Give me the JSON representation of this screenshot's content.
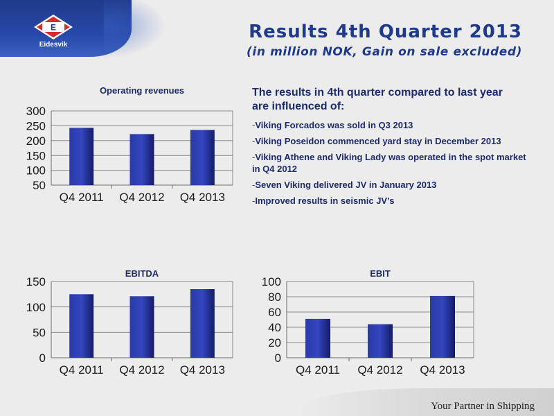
{
  "logo": {
    "name": "Eidesvik",
    "mark": "E",
    "colors": {
      "band": "#1f3a8a",
      "diamond": "#d62c2c"
    }
  },
  "title": "Results 4th Quarter 2013",
  "subtitle": "(in million NOK, Gain on sale excluded)",
  "text": {
    "heading": "The results in 4th quarter compared to last year are influenced of:",
    "bullets": [
      "Viking Forcados was sold in Q3 2013",
      "Viking Poseidon commenced yard stay in December 2013",
      "Viking Athene and Viking Lady was operated in the spot market in Q4 2012",
      "Seven Viking delivered JV in January 2013",
      "Improved results in seismic JV’s"
    ]
  },
  "tagline": "Your Partner in Shipping",
  "colors": {
    "bar": "#1e2a8c",
    "text": "#1c2a6e",
    "grid": "#8a8a8a"
  },
  "chart_data": [
    {
      "type": "bar",
      "title": "Operating revenues",
      "categories": [
        "Q4 2011",
        "Q4 2012",
        "Q4 2013"
      ],
      "values": [
        243,
        222,
        236
      ],
      "ylim": [
        50,
        300
      ],
      "yticks": [
        "50",
        "100",
        "150",
        "200",
        "250",
        "300"
      ],
      "grid": true
    },
    {
      "type": "bar",
      "title": "EBITDA",
      "categories": [
        "Q4 2011",
        "Q4 2012",
        "Q4 2013"
      ],
      "values": [
        125,
        121,
        135
      ],
      "ylim": [
        0,
        150
      ],
      "yticks": [
        "0",
        "50",
        "100",
        "150"
      ],
      "grid": true
    },
    {
      "type": "bar",
      "title": "EBIT",
      "categories": [
        "Q4 2011",
        "Q4 2012",
        "Q4 2013"
      ],
      "values": [
        51,
        44,
        81
      ],
      "ylim": [
        0,
        100
      ],
      "yticks": [
        "0",
        "20",
        "40",
        "60",
        "80",
        "100"
      ],
      "grid": true
    }
  ]
}
